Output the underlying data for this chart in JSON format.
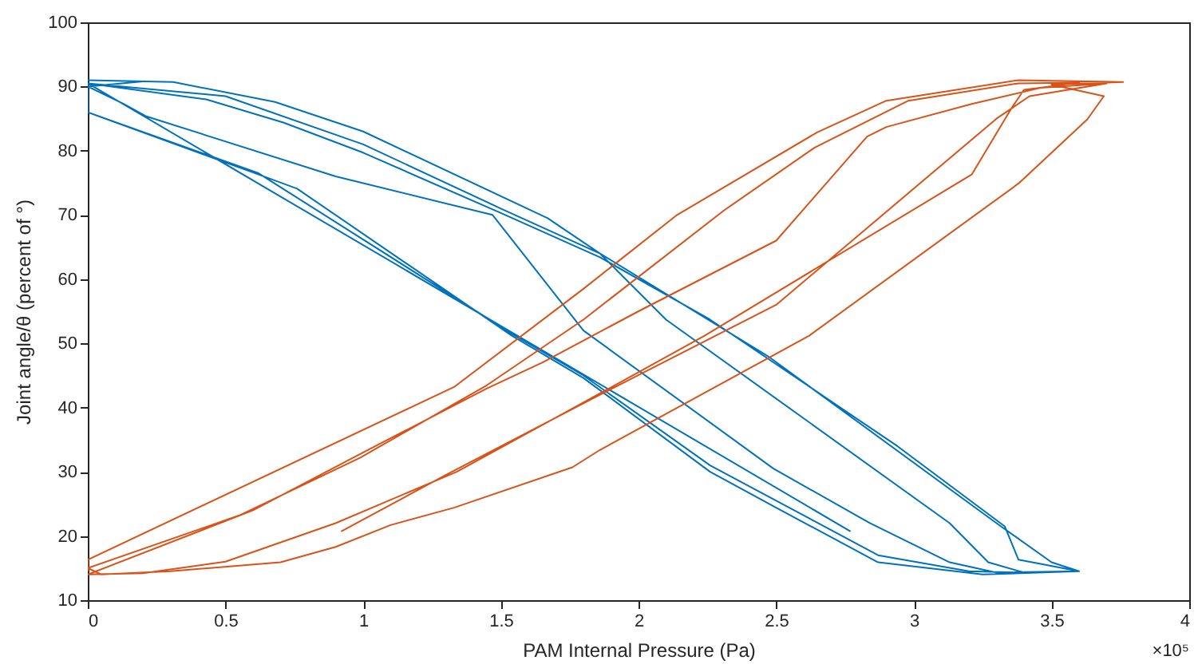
{
  "chart_data": {
    "type": "line",
    "xlabel": "PAM Internal Pressure (Pa)",
    "ylabel": "Joint angle/θ (percent of °)",
    "annotations": [
      "×10⁵"
    ],
    "xlim": [
      0,
      4
    ],
    "xticks": [
      0,
      0.5,
      1,
      1.5,
      2,
      2.5,
      3,
      3.5,
      4
    ],
    "ylim": [
      10,
      100
    ],
    "yticks": [
      10,
      20,
      30,
      40,
      50,
      60,
      70,
      80,
      90,
      100
    ],
    "grid": false,
    "legend": false,
    "marker": "none",
    "line_style": "solid",
    "series": [
      {
        "color": "#0072bd",
        "x": [
          0,
          0.62,
          0.76,
          1.54,
          1.8,
          2.26,
          2.5,
          2.87,
          3.25,
          3.6,
          3.5,
          3.3,
          2.47,
          1.86,
          1.67,
          1.0,
          0.68,
          0.31,
          0,
          0.2,
          0,
          0.13,
          0.21,
          0.9,
          1.47,
          1.8,
          2.49,
          2.84,
          3.13,
          3.3,
          3.6,
          3.38,
          3.33,
          2.94,
          2.26,
          1.86,
          1.5,
          1.0,
          0.71,
          0.43,
          0,
          0,
          0.62,
          1.54,
          1.8,
          2.26,
          2.5,
          2.87,
          3.2,
          3.4,
          3.27,
          3.13,
          2.1,
          1.86,
          1.5,
          1.0,
          0.5,
          0,
          2.77
        ],
        "values": [
          86,
          76.3,
          74.1,
          51.2,
          44.6,
          30,
          24.4,
          15.9,
          14,
          14.5,
          15.9,
          22,
          48,
          64,
          69.5,
          83,
          87.6,
          90.7,
          91,
          90.8,
          90,
          87.3,
          85.4,
          76,
          70,
          52,
          30.5,
          22,
          15.9,
          14.3,
          14.5,
          16.3,
          21.5,
          34,
          53.7,
          63.4,
          70.3,
          79.7,
          84.4,
          88,
          90.5,
          86,
          76.5,
          51.5,
          45,
          31,
          25.5,
          17,
          14.5,
          14.3,
          15.9,
          22,
          53.7,
          64,
          71,
          81,
          88.5,
          90.5,
          20.7
        ]
      },
      {
        "color": "#d95319",
        "x": [
          0,
          0,
          1.33,
          1.8,
          2.14,
          2.65,
          2.9,
          3.38,
          3.76,
          3.5,
          3.69,
          3.63,
          3.38,
          2.62,
          1.86,
          1.76,
          1.33,
          1.1,
          0.9,
          0.7,
          0.3,
          0.05,
          0,
          0.55,
          0.99,
          1.45,
          1.8,
          2.31,
          2.64,
          2.98,
          3.38,
          3.6,
          3.4,
          3.36,
          3.21,
          2.24,
          1.86,
          1.34,
          0.9,
          0.5,
          0.2,
          0,
          0.6,
          1.0,
          1.45,
          1.65,
          2.0,
          2.5,
          2.83,
          2.9,
          3.21,
          3.46,
          3.7,
          3.42,
          3.3,
          2.5,
          1.86,
          1.3,
          0.92
        ],
        "values": [
          14.5,
          16.3,
          43.2,
          58.5,
          70,
          82.9,
          87.8,
          91,
          90.7,
          90.3,
          88.5,
          84.9,
          74.9,
          51.2,
          33.4,
          30.7,
          24.4,
          21.7,
          18.3,
          15.9,
          14.5,
          14,
          15,
          23.2,
          32.2,
          43.5,
          53.7,
          70.7,
          80.5,
          87.8,
          90.5,
          90.6,
          89.5,
          87,
          76.3,
          51.2,
          42.2,
          30,
          22,
          16,
          14.2,
          14,
          24,
          33,
          43,
          47,
          55,
          66,
          82.2,
          83.7,
          87.3,
          89.8,
          90.5,
          88.5,
          85,
          56,
          42,
          29.5,
          20.7
        ]
      }
    ]
  }
}
